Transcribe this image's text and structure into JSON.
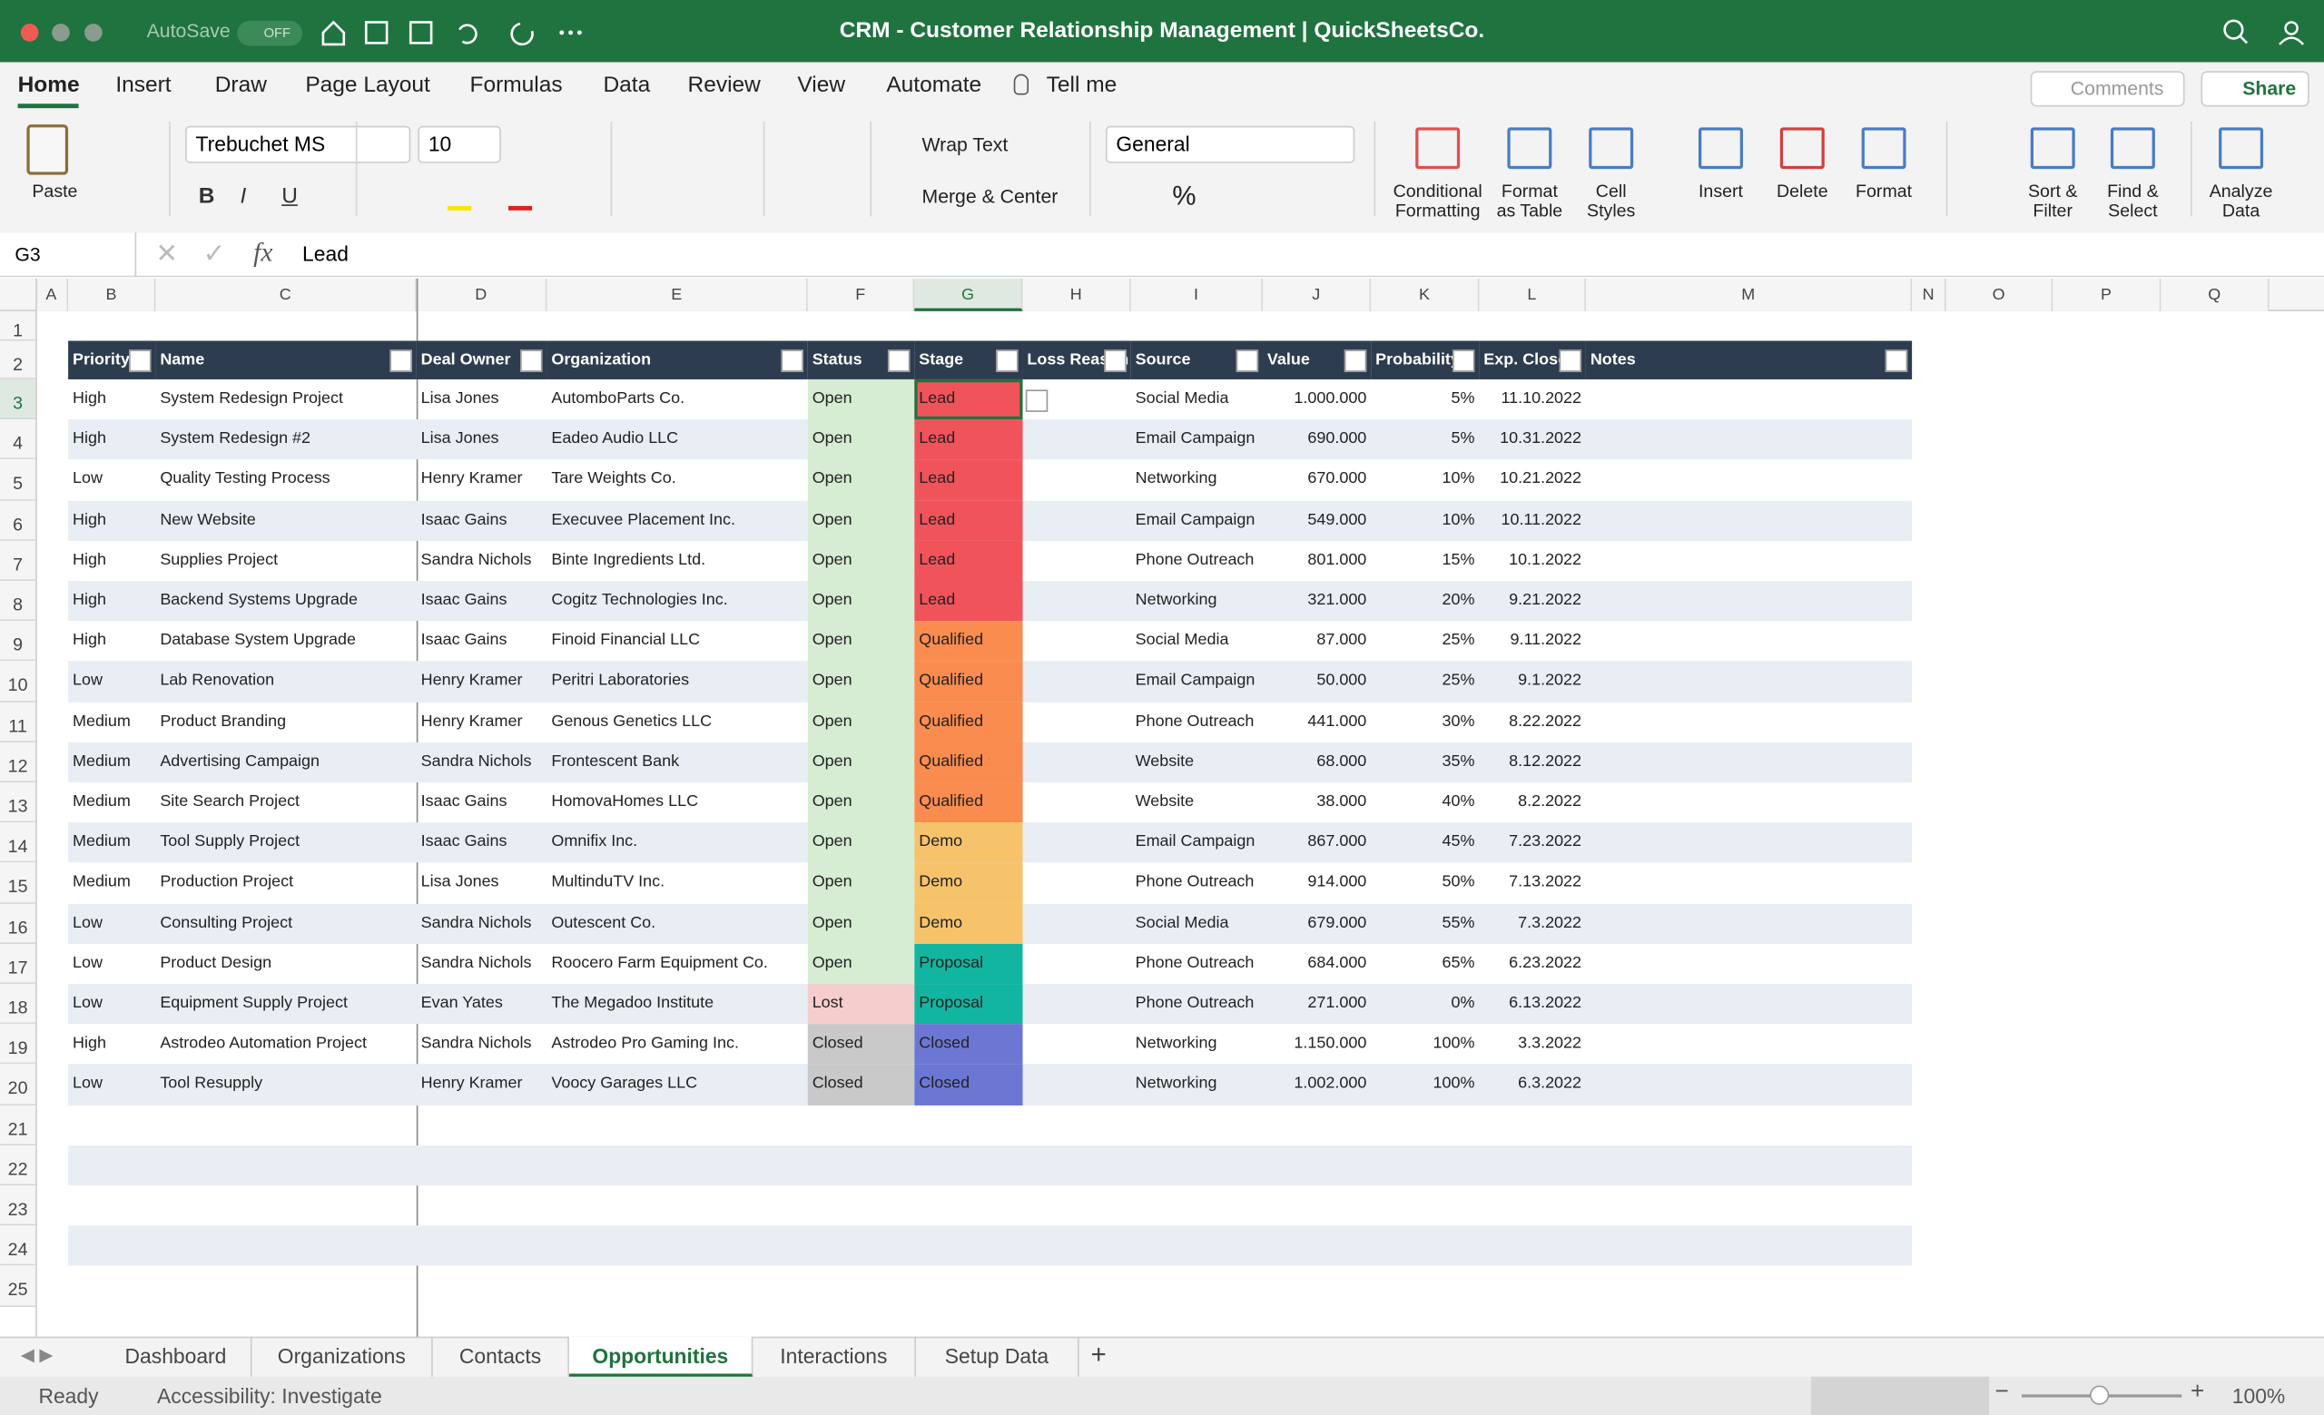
{
  "window": {
    "autosave": "AutoSave",
    "toggle": "OFF",
    "title": "CRM - Customer Relationship Management | QuickSheetsCo."
  },
  "menu": {
    "tabs": [
      "Home",
      "Insert",
      "Draw",
      "Page Layout",
      "Formulas",
      "Data",
      "Review",
      "View",
      "Automate"
    ],
    "tell_me": "Tell me",
    "comments": "Comments",
    "share": "Share"
  },
  "ribbon": {
    "paste": "Paste",
    "font": "Trebuchet MS",
    "font_size": "10",
    "wrap_text": "Wrap Text",
    "merge": "Merge & Center",
    "number_format": "General",
    "buttons": [
      [
        "Conditional",
        "Formatting"
      ],
      [
        "Format",
        "as Table"
      ],
      [
        "Cell",
        "Styles"
      ],
      [
        "Insert"
      ],
      [
        "Delete"
      ],
      [
        "Format"
      ],
      [
        "Sort &",
        "Filter"
      ],
      [
        "Find &",
        "Select"
      ],
      [
        "Analyze",
        "Data"
      ]
    ]
  },
  "formula_bar": {
    "cell": "G3",
    "formula": "Lead"
  },
  "grid": {
    "columns": [
      "A",
      "B",
      "C",
      "D",
      "E",
      "F",
      "G",
      "H",
      "I",
      "J",
      "K",
      "L",
      "M",
      "N",
      "O",
      "P",
      "Q"
    ],
    "row_numbers": [
      1,
      2,
      3,
      4,
      5,
      6,
      7,
      8,
      9,
      10,
      11,
      12,
      13,
      14,
      15,
      16,
      17,
      18,
      19,
      20,
      21,
      22,
      23,
      24,
      25
    ]
  },
  "table": {
    "headers": [
      "Priority",
      "Name",
      "Deal Owner",
      "Organization",
      "Status",
      "Stage",
      "Loss Reason",
      "Source",
      "Value",
      "Probability",
      "Exp. Close",
      "Notes"
    ],
    "rows": [
      [
        "High",
        "System Redesign Project",
        "Lisa Jones",
        "AutomboParts Co.",
        "Open",
        "Lead",
        "Social Media",
        "1.000.000",
        "5%",
        "11.10.2022"
      ],
      [
        "High",
        "System Redesign #2",
        "Lisa Jones",
        "Eadeo Audio LLC",
        "Open",
        "Lead",
        "Email Campaign",
        "690.000",
        "5%",
        "10.31.2022"
      ],
      [
        "Low",
        "Quality Testing Process",
        "Henry Kramer",
        "Tare Weights Co.",
        "Open",
        "Lead",
        "Networking",
        "670.000",
        "10%",
        "10.21.2022"
      ],
      [
        "High",
        "New Website",
        "Isaac Gains",
        "Execuvee Placement Inc.",
        "Open",
        "Lead",
        "Email Campaign",
        "549.000",
        "10%",
        "10.11.2022"
      ],
      [
        "High",
        "Supplies Project",
        "Sandra Nichols",
        "Binte Ingredients Ltd.",
        "Open",
        "Lead",
        "Phone Outreach",
        "801.000",
        "15%",
        "10.1.2022"
      ],
      [
        "High",
        "Backend Systems Upgrade",
        "Isaac Gains",
        "Cogitz Technologies Inc.",
        "Open",
        "Lead",
        "Networking",
        "321.000",
        "20%",
        "9.21.2022"
      ],
      [
        "High",
        "Database System Upgrade",
        "Isaac Gains",
        "Finoid Financial LLC",
        "Open",
        "Qualified",
        "Social Media",
        "87.000",
        "25%",
        "9.11.2022"
      ],
      [
        "Low",
        "Lab Renovation",
        "Henry Kramer",
        "Peritri Laboratories",
        "Open",
        "Qualified",
        "Email Campaign",
        "50.000",
        "25%",
        "9.1.2022"
      ],
      [
        "Medium",
        "Product Branding",
        "Henry Kramer",
        "Genous Genetics LLC",
        "Open",
        "Qualified",
        "Phone Outreach",
        "441.000",
        "30%",
        "8.22.2022"
      ],
      [
        "Medium",
        "Advertising Campaign",
        "Sandra Nichols",
        "Frontescent Bank",
        "Open",
        "Qualified",
        "Website",
        "68.000",
        "35%",
        "8.12.2022"
      ],
      [
        "Medium",
        "Site Search Project",
        "Isaac Gains",
        "HomovaHomes LLC",
        "Open",
        "Qualified",
        "Website",
        "38.000",
        "40%",
        "8.2.2022"
      ],
      [
        "Medium",
        "Tool Supply Project",
        "Isaac Gains",
        "Omnifix Inc.",
        "Open",
        "Demo",
        "Email Campaign",
        "867.000",
        "45%",
        "7.23.2022"
      ],
      [
        "Medium",
        "Production Project",
        "Lisa Jones",
        "MultinduTV Inc.",
        "Open",
        "Demo",
        "Phone Outreach",
        "914.000",
        "50%",
        "7.13.2022"
      ],
      [
        "Low",
        "Consulting Project",
        "Sandra Nichols",
        "Outescent Co.",
        "Open",
        "Demo",
        "Social Media",
        "679.000",
        "55%",
        "7.3.2022"
      ],
      [
        "Low",
        "Product Design",
        "Sandra Nichols",
        "Roocero Farm Equipment Co.",
        "Open",
        "Proposal",
        "Phone Outreach",
        "684.000",
        "65%",
        "6.23.2022"
      ],
      [
        "Low",
        "Equipment Supply Project",
        "Evan Yates",
        "The Megadoo Institute",
        "Lost",
        "Proposal",
        "Phone Outreach",
        "271.000",
        "0%",
        "6.13.2022"
      ],
      [
        "High",
        "Astrodeo Automation Project",
        "Sandra Nichols",
        "Astrodeo Pro Gaming Inc.",
        "Closed",
        "Closed",
        "Networking",
        "1.150.000",
        "100%",
        "3.3.2022"
      ],
      [
        "Low",
        "Tool Resupply",
        "Henry Kramer",
        "Voocy Garages LLC",
        "Closed",
        "Closed",
        "Networking",
        "1.002.000",
        "100%",
        "6.3.2022"
      ]
    ]
  },
  "sheets": {
    "tabs": [
      "Dashboard",
      "Organizations",
      "Contacts",
      "Opportunities",
      "Interactions",
      "Setup Data"
    ],
    "active": 3
  },
  "status": {
    "ready": "Ready",
    "accessibility": "Accessibility: Investigate",
    "zoom": "100%"
  }
}
